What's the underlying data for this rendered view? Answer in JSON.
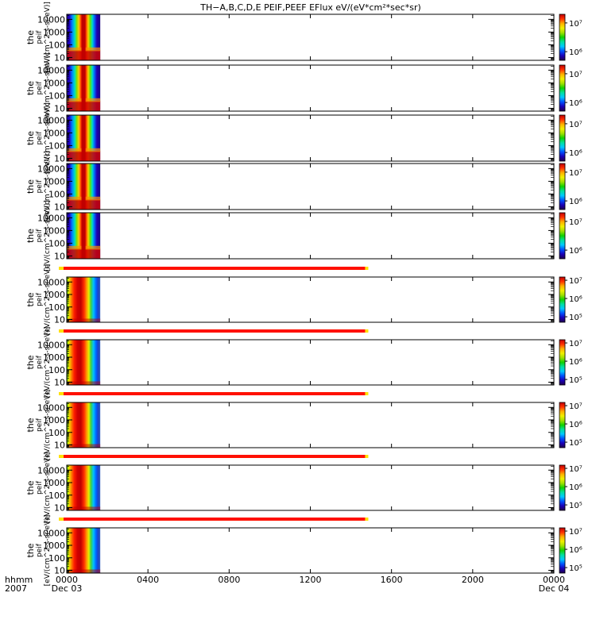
{
  "chart_data": {
    "type": "heatmap",
    "title": "TH−A,B,C,D,E PEIF,PEEF EFlux eV/(eV*cm²*sec*sr)",
    "time_axis": {
      "range": [
        0,
        24
      ],
      "ticks": [
        {
          "hour": 0,
          "label": "0000",
          "date": "Dec 03"
        },
        {
          "hour": 4,
          "label": "0400",
          "date": ""
        },
        {
          "hour": 8,
          "label": "0800",
          "date": ""
        },
        {
          "hour": 12,
          "label": "1200",
          "date": ""
        },
        {
          "hour": 16,
          "label": "1600",
          "date": ""
        },
        {
          "hour": 20,
          "label": "2000",
          "date": ""
        },
        {
          "hour": 24,
          "label": "0000",
          "date": "Dec 04"
        }
      ],
      "corner_label_top": "hhmm",
      "corner_label_bottom": "2007"
    },
    "energy_axis": {
      "scale": "log",
      "range": [
        6,
        25000
      ],
      "ticks": [
        {
          "value": 10000,
          "label": "10000"
        },
        {
          "value": 1000,
          "label": "1000"
        },
        {
          "value": 100,
          "label": "100"
        },
        {
          "value": 10,
          "label": "10"
        }
      ]
    },
    "colormap": [
      "#20004a",
      "#1a00b8",
      "#0050ff",
      "#00c8ff",
      "#00e0a0",
      "#10d000",
      "#a0e000",
      "#f0f000",
      "#ffb000",
      "#ff3000",
      "#c00000"
    ],
    "data_extent_hours": [
      0,
      1.65
    ],
    "panels": [
      {
        "kind": "peif",
        "ylabel": "the peif [eV/(cm^2-s-sr-eV)]",
        "cbar_ticks": [
          {
            "value": 10000000,
            "label": "10⁷"
          },
          {
            "value": 1000000,
            "label": "10⁶"
          }
        ],
        "cbar_range": [
          500000,
          20000000
        ],
        "qflag": false
      },
      {
        "kind": "peif",
        "ylabel": "the peif [eV/(cm^2-s-sr-eV)]",
        "cbar_ticks": [
          {
            "value": 10000000,
            "label": "10⁷"
          },
          {
            "value": 1000000,
            "label": "10⁶"
          }
        ],
        "cbar_range": [
          500000,
          20000000
        ],
        "qflag": false
      },
      {
        "kind": "peif",
        "ylabel": "the peif [eV/(cm^2-s-sr-eV)]",
        "cbar_ticks": [
          {
            "value": 10000000,
            "label": "10⁷"
          },
          {
            "value": 1000000,
            "label": "10⁶"
          }
        ],
        "cbar_range": [
          500000,
          20000000
        ],
        "qflag": false
      },
      {
        "kind": "peif",
        "ylabel": "the peif [eV/(cm^2-s-sr-eV)]",
        "cbar_ticks": [
          {
            "value": 10000000,
            "label": "10⁷"
          },
          {
            "value": 1000000,
            "label": "10⁶"
          }
        ],
        "cbar_range": [
          500000,
          20000000
        ],
        "qflag": false
      },
      {
        "kind": "peif",
        "ylabel": "the peif [eV/(cm^2-s-sr-eV)]",
        "cbar_ticks": [
          {
            "value": 10000000,
            "label": "10⁷"
          },
          {
            "value": 1000000,
            "label": "10⁶"
          }
        ],
        "cbar_range": [
          500000,
          20000000
        ],
        "qflag": false
      },
      {
        "kind": "peef",
        "ylabel": "the peif [eV/(cm^2-s-sr-eV)]",
        "cbar_ticks": [
          {
            "value": 10000000,
            "label": "10⁷"
          },
          {
            "value": 1000000,
            "label": "10⁶"
          },
          {
            "value": 100000,
            "label": "10⁵"
          }
        ],
        "cbar_range": [
          50000,
          15000000
        ],
        "qflag": true
      },
      {
        "kind": "peef",
        "ylabel": "the peif [eV/(cm^2-s-sr-eV)]",
        "cbar_ticks": [
          {
            "value": 10000000,
            "label": "10⁷"
          },
          {
            "value": 1000000,
            "label": "10⁶"
          },
          {
            "value": 100000,
            "label": "10⁵"
          }
        ],
        "cbar_range": [
          50000,
          15000000
        ],
        "qflag": true
      },
      {
        "kind": "peef",
        "ylabel": "the peif [eV/(cm^2-s-sr-eV)]",
        "cbar_ticks": [
          {
            "value": 10000000,
            "label": "10⁷"
          },
          {
            "value": 1000000,
            "label": "10⁶"
          },
          {
            "value": 100000,
            "label": "10⁵"
          }
        ],
        "cbar_range": [
          50000,
          15000000
        ],
        "qflag": true
      },
      {
        "kind": "peef",
        "ylabel": "the peif [eV/(cm^2-s-sr-eV)]",
        "cbar_ticks": [
          {
            "value": 10000000,
            "label": "10⁷"
          },
          {
            "value": 1000000,
            "label": "10⁶"
          },
          {
            "value": 100000,
            "label": "10⁵"
          }
        ],
        "cbar_range": [
          50000,
          15000000
        ],
        "qflag": true
      },
      {
        "kind": "peef",
        "ylabel": "the peif [eV/(cm^2-s-sr-eV)]",
        "cbar_ticks": [
          {
            "value": 10000000,
            "label": "10⁷"
          },
          {
            "value": 1000000,
            "label": "10⁶"
          },
          {
            "value": 100000,
            "label": "10⁵"
          }
        ],
        "cbar_range": [
          50000,
          15000000
        ],
        "qflag": true
      }
    ],
    "quality_flag_bar": {
      "hours": [
        0,
        14.7
      ],
      "color": "#ff1000",
      "end_color": "#ffe000"
    }
  }
}
